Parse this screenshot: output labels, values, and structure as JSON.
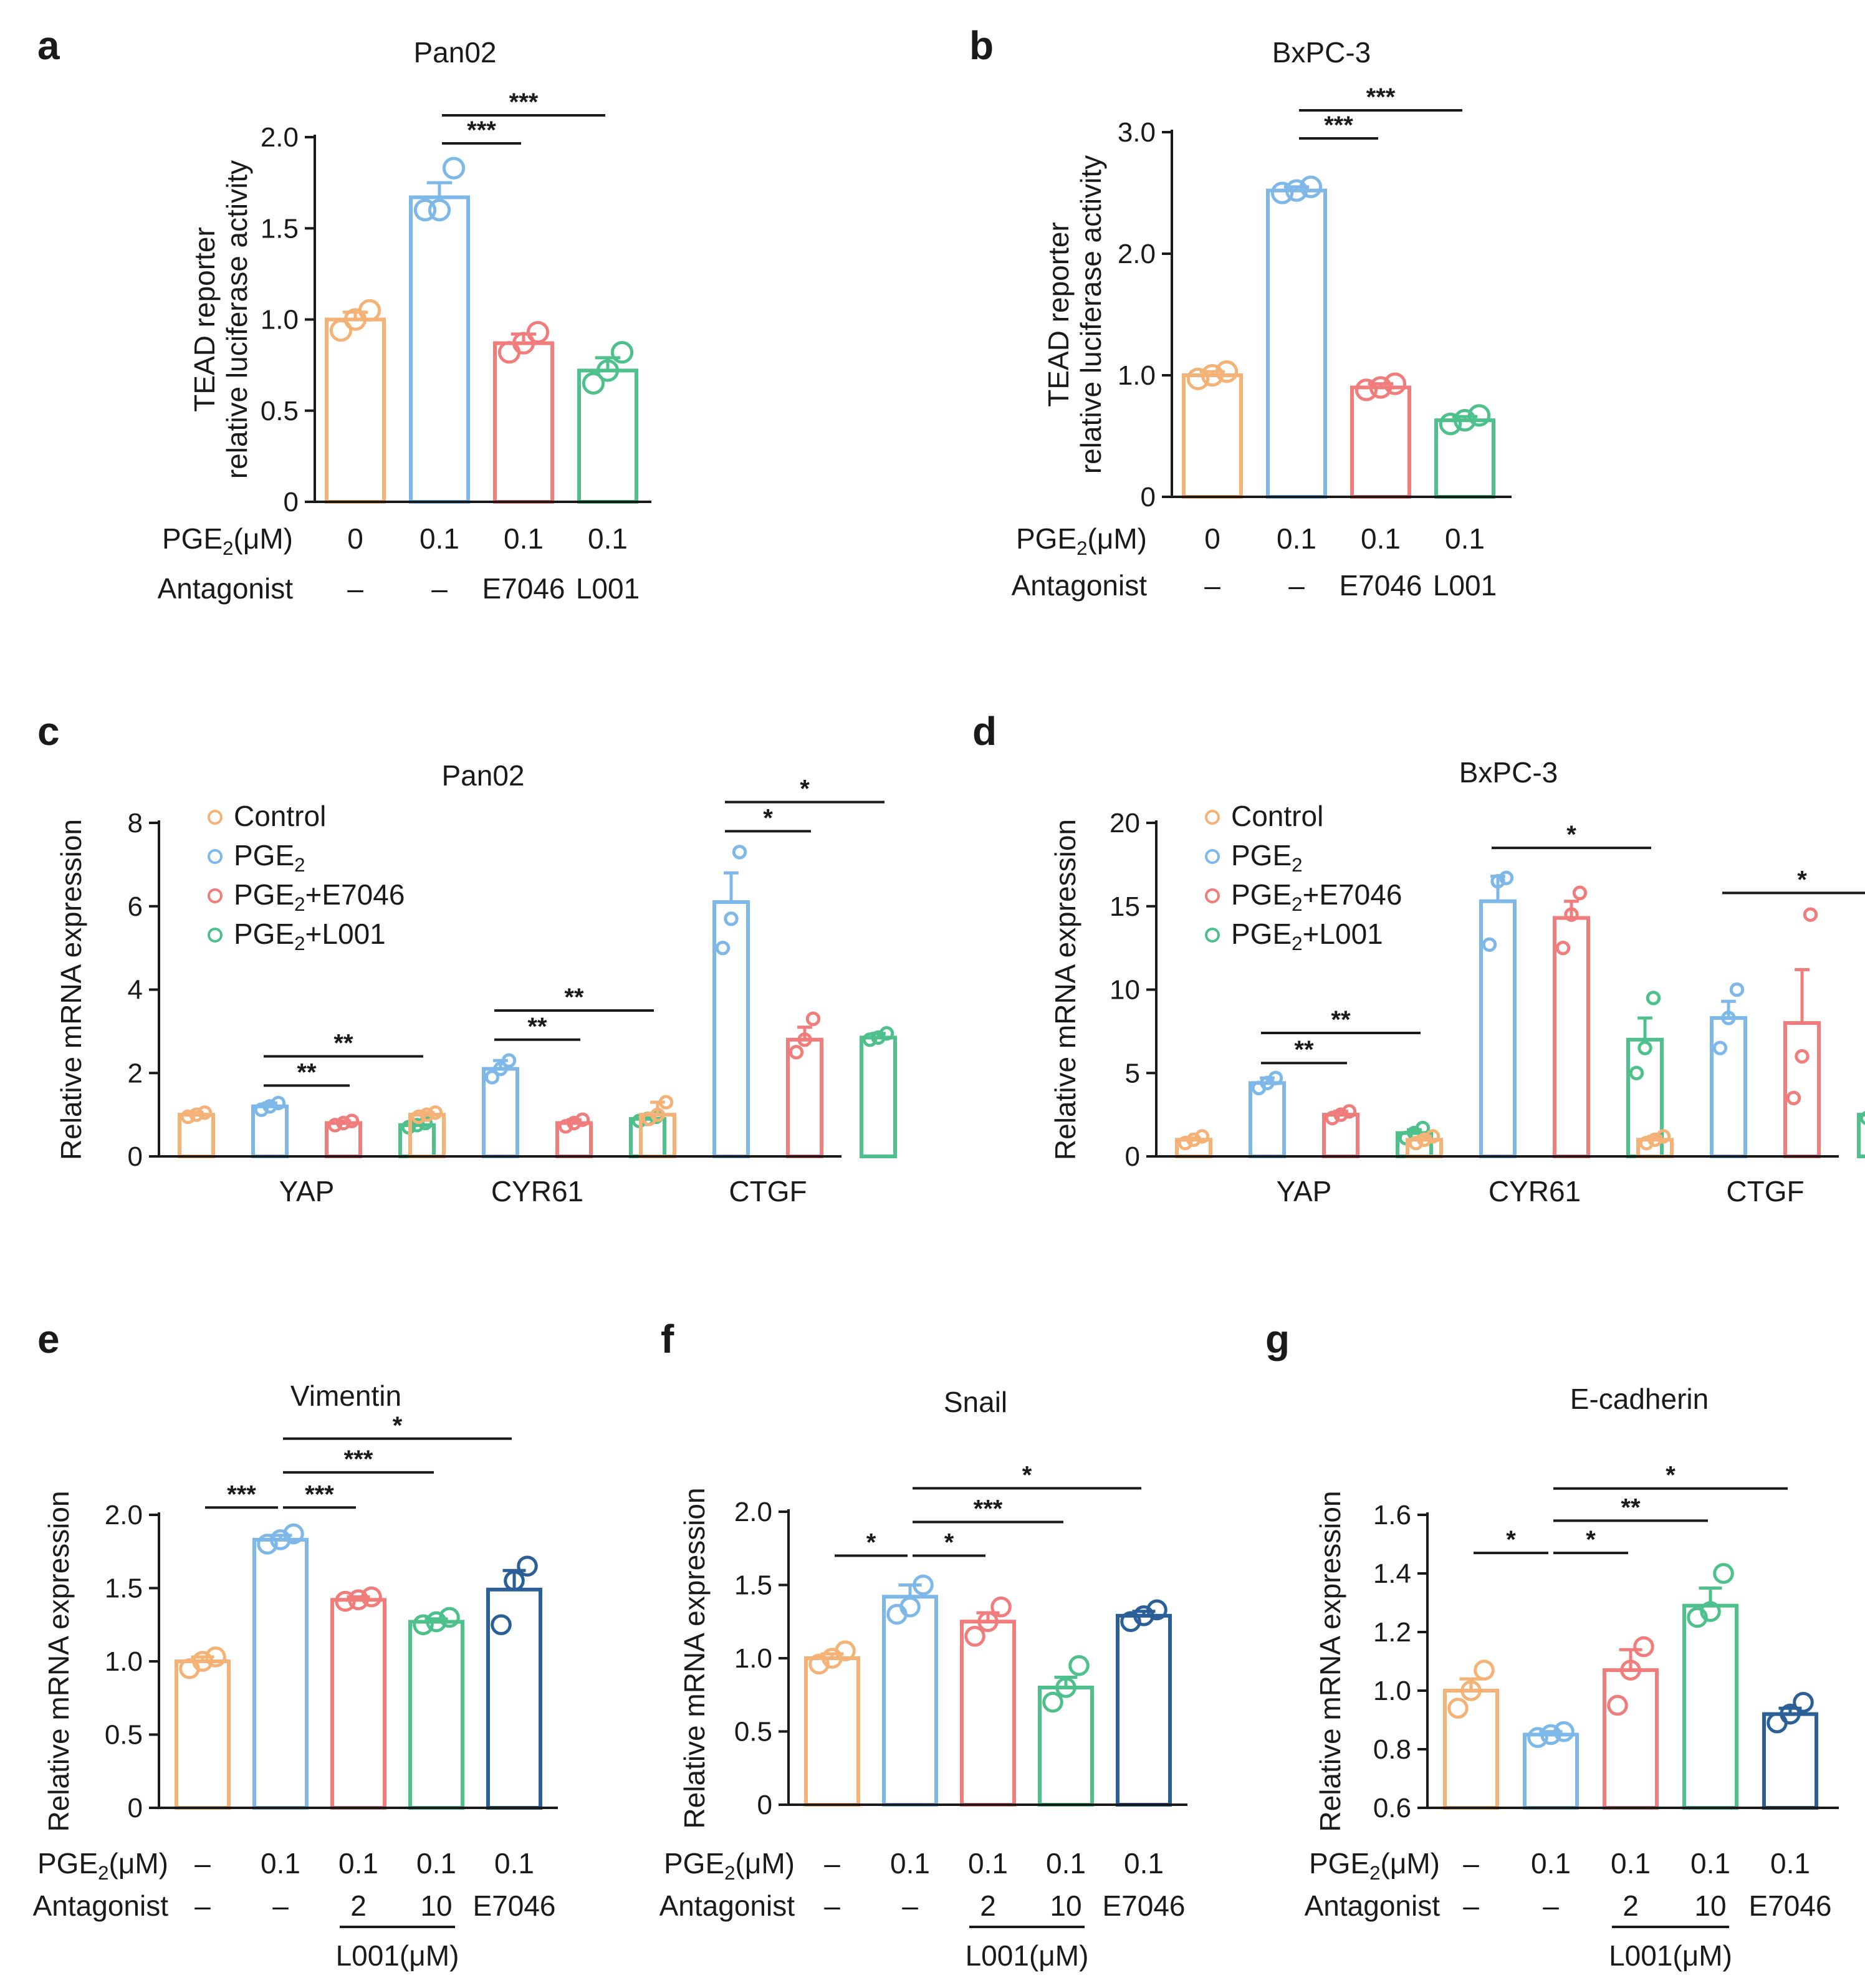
{
  "colors": {
    "orange": "#F5B276",
    "blue": "#7EB8E8",
    "red": "#F07C7C",
    "green": "#4DC08C",
    "navy": "#2A5F98"
  },
  "chart_data": [
    {
      "id": "a",
      "type": "bar",
      "panel_label": "a",
      "title": "Pan02",
      "ylabel": "TEAD reporter\nrelative luciferase activity",
      "ylim": [
        0,
        2.0
      ],
      "yticks": [
        0,
        0.5,
        1.0,
        1.5,
        2.0
      ],
      "ytick_labels": [
        "0",
        "0.5",
        "1.0",
        "1.5",
        "2.0"
      ],
      "values": [
        1.0,
        1.67,
        0.87,
        0.72
      ],
      "errors": [
        0.04,
        0.08,
        0.05,
        0.07
      ],
      "points": [
        [
          0.94,
          1.0,
          1.05
        ],
        [
          1.6,
          1.6,
          1.83
        ],
        [
          0.82,
          0.87,
          0.93
        ],
        [
          0.65,
          0.72,
          0.82
        ]
      ],
      "colors": [
        "orange",
        "blue",
        "red",
        "green"
      ],
      "row_labels": [
        {
          "label": "PGE2(μM)",
          "values": [
            "0",
            "0.1",
            "0.1",
            "0.1"
          ]
        },
        {
          "label": "Antagonist",
          "values": [
            "–",
            "–",
            "E7046",
            "L001"
          ]
        }
      ],
      "significance": [
        {
          "from": 1,
          "to": 2,
          "label": "***",
          "level": 0
        },
        {
          "from": 1,
          "to": 3,
          "label": "***",
          "level": 1
        }
      ]
    },
    {
      "id": "b",
      "type": "bar",
      "panel_label": "b",
      "title": "BxPC-3",
      "ylabel": "TEAD reporter\nrelative luciferase activity",
      "ylim": [
        0,
        3.0
      ],
      "yticks": [
        0,
        1.0,
        2.0,
        3.0
      ],
      "ytick_labels": [
        "0",
        "1.0",
        "2.0",
        "3.0"
      ],
      "values": [
        1.0,
        2.52,
        0.9,
        0.63
      ],
      "errors": [
        0.03,
        0.03,
        0.03,
        0.03
      ],
      "points": [
        [
          0.97,
          1.0,
          1.03
        ],
        [
          2.5,
          2.52,
          2.55
        ],
        [
          0.88,
          0.9,
          0.93
        ],
        [
          0.6,
          0.63,
          0.67
        ]
      ],
      "colors": [
        "orange",
        "blue",
        "red",
        "green"
      ],
      "row_labels": [
        {
          "label": "PGE2(μM)",
          "values": [
            "0",
            "0.1",
            "0.1",
            "0.1"
          ]
        },
        {
          "label": "Antagonist",
          "values": [
            "–",
            "–",
            "E7046",
            "L001"
          ]
        }
      ],
      "significance": [
        {
          "from": 1,
          "to": 2,
          "label": "***",
          "level": 0
        },
        {
          "from": 1,
          "to": 3,
          "label": "***",
          "level": 1
        }
      ]
    },
    {
      "id": "c",
      "type": "bar",
      "panel_label": "c",
      "title": "Pan02",
      "ylabel": "Relative mRNA expression",
      "ylim": [
        0,
        8
      ],
      "yticks": [
        0,
        2,
        4,
        6,
        8
      ],
      "ytick_labels": [
        "0",
        "2",
        "4",
        "6",
        "8"
      ],
      "categories": [
        "YAP",
        "CYR61",
        "CTGF"
      ],
      "legend": [
        "Control",
        "PGE2",
        "PGE2+E7046",
        "PGE2+L001"
      ],
      "colors": [
        "orange",
        "blue",
        "red",
        "green"
      ],
      "series_values": [
        [
          1.0,
          1.2,
          0.8,
          0.75
        ],
        [
          1.0,
          2.1,
          0.8,
          0.9
        ],
        [
          1.0,
          6.1,
          2.8,
          2.85
        ]
      ],
      "series_errors": [
        [
          0.05,
          0.08,
          0.05,
          0.05
        ],
        [
          0.05,
          0.2,
          0.08,
          0.06
        ],
        [
          0.3,
          0.7,
          0.3,
          0.1
        ]
      ],
      "series_points": [
        [
          [
            0.95,
            1.0,
            1.05
          ],
          [
            1.12,
            1.2,
            1.28
          ],
          [
            0.75,
            0.8,
            0.85
          ],
          [
            0.7,
            0.75,
            0.8
          ]
        ],
        [
          [
            0.95,
            1.0,
            1.05
          ],
          [
            1.9,
            2.1,
            2.3
          ],
          [
            0.72,
            0.8,
            0.88
          ],
          [
            0.85,
            0.9,
            0.95
          ]
        ],
        [
          [
            0.9,
            1.0,
            1.3
          ],
          [
            5.0,
            5.7,
            7.3
          ],
          [
            2.5,
            2.8,
            3.3
          ],
          [
            2.8,
            2.85,
            2.95
          ]
        ]
      ],
      "significance": [
        {
          "group": 0,
          "from": 1,
          "to": 2,
          "label": "**",
          "y": 1.7
        },
        {
          "group": 0,
          "from": 1,
          "to": 3,
          "label": "**",
          "y": 2.4
        },
        {
          "group": 1,
          "from": 1,
          "to": 2,
          "label": "**",
          "y": 2.8
        },
        {
          "group": 1,
          "from": 1,
          "to": 3,
          "label": "**",
          "y": 3.5
        },
        {
          "group": 2,
          "from": 1,
          "to": 2,
          "label": "*",
          "y": 7.8
        },
        {
          "group": 2,
          "from": 1,
          "to": 3,
          "label": "*",
          "y": 8.5
        }
      ]
    },
    {
      "id": "d",
      "type": "bar",
      "panel_label": "d",
      "title": "BxPC-3",
      "ylabel": "Relative mRNA expression",
      "ylim": [
        0,
        20
      ],
      "yticks": [
        0,
        5,
        10,
        15,
        20
      ],
      "ytick_labels": [
        "0",
        "5",
        "10",
        "15",
        "20"
      ],
      "categories": [
        "YAP",
        "CYR61",
        "CTGF"
      ],
      "legend": [
        "Control",
        "PGE2",
        "PGE2+E7046",
        "PGE2+L001"
      ],
      "colors": [
        "orange",
        "blue",
        "red",
        "green"
      ],
      "series_values": [
        [
          1.0,
          4.4,
          2.5,
          1.4
        ],
        [
          1.0,
          15.3,
          14.3,
          7.0
        ],
        [
          1.0,
          8.3,
          8.0,
          2.5
        ]
      ],
      "series_errors": [
        [
          0.1,
          0.3,
          0.2,
          0.2
        ],
        [
          0.2,
          1.5,
          1.0,
          1.3
        ],
        [
          0.2,
          1.0,
          3.2,
          0.2
        ]
      ],
      "series_points": [
        [
          [
            0.8,
            1.0,
            1.2
          ],
          [
            4.1,
            4.4,
            4.7
          ],
          [
            2.3,
            2.5,
            2.7
          ],
          [
            1.1,
            1.4,
            1.7
          ]
        ],
        [
          [
            0.8,
            1.0,
            1.2
          ],
          [
            12.7,
            16.5,
            16.7
          ],
          [
            12.5,
            14.5,
            15.8
          ],
          [
            5.0,
            6.5,
            9.5
          ]
        ],
        [
          [
            0.8,
            1.0,
            1.2
          ],
          [
            6.5,
            8.3,
            10.0
          ],
          [
            3.5,
            6.0,
            14.5
          ],
          [
            2.3,
            2.5,
            2.7
          ]
        ]
      ],
      "significance": [
        {
          "group": 0,
          "from": 1,
          "to": 2,
          "label": "**",
          "y": 5.6
        },
        {
          "group": 0,
          "from": 1,
          "to": 3,
          "label": "**",
          "y": 7.4
        },
        {
          "group": 1,
          "from": 1,
          "to": 3,
          "label": "*",
          "y": 18.5
        },
        {
          "group": 2,
          "from": 1,
          "to": 3,
          "label": "*",
          "y": 15.8
        }
      ]
    },
    {
      "id": "e",
      "type": "bar",
      "panel_label": "e",
      "title": "Vimentin",
      "ylabel": "Relative mRNA expression",
      "ylim": [
        0,
        2.0
      ],
      "yticks": [
        0,
        0.5,
        1.0,
        1.5,
        2.0
      ],
      "ytick_labels": [
        "0",
        "0.5",
        "1.0",
        "1.5",
        "2.0"
      ],
      "values": [
        1.0,
        1.83,
        1.42,
        1.27,
        1.49
      ],
      "errors": [
        0.03,
        0.03,
        0.02,
        0.02,
        0.13
      ],
      "points": [
        [
          0.95,
          1.0,
          1.03
        ],
        [
          1.8,
          1.83,
          1.87
        ],
        [
          1.41,
          1.42,
          1.44
        ],
        [
          1.25,
          1.27,
          1.3
        ],
        [
          1.25,
          1.55,
          1.65
        ]
      ],
      "colors": [
        "orange",
        "blue",
        "red",
        "green",
        "navy"
      ],
      "row_labels": [
        {
          "label": "PGE2(μM)",
          "values": [
            "–",
            "0.1",
            "0.1",
            "0.1",
            "0.1"
          ]
        },
        {
          "label": "Antagonist",
          "values": [
            "–",
            "–",
            "2",
            "10",
            "E7046"
          ]
        }
      ],
      "group_label": "L001(μM)",
      "significance": [
        {
          "from": 0,
          "to": 1,
          "label": "***",
          "y": 2.05
        },
        {
          "from": 1,
          "to": 2,
          "label": "***",
          "y": 2.05
        },
        {
          "from": 1,
          "to": 3,
          "label": "***",
          "y": 2.29
        },
        {
          "from": 1,
          "to": 4,
          "label": "*",
          "y": 2.52
        }
      ]
    },
    {
      "id": "f",
      "type": "bar",
      "panel_label": "f",
      "title": "Snail",
      "ylabel": "Relative mRNA expression",
      "ylim": [
        0,
        2.0
      ],
      "yticks": [
        0,
        0.5,
        1.0,
        1.5,
        2.0
      ],
      "ytick_labels": [
        "0",
        "0.5",
        "1.0",
        "1.5",
        "2.0"
      ],
      "values": [
        1.0,
        1.42,
        1.25,
        0.8,
        1.29
      ],
      "errors": [
        0.03,
        0.08,
        0.06,
        0.07,
        0.03
      ],
      "points": [
        [
          0.96,
          1.0,
          1.05
        ],
        [
          1.3,
          1.35,
          1.5
        ],
        [
          1.15,
          1.25,
          1.35
        ],
        [
          0.7,
          0.8,
          0.95
        ],
        [
          1.25,
          1.29,
          1.33
        ]
      ],
      "colors": [
        "orange",
        "blue",
        "red",
        "green",
        "navy"
      ],
      "row_labels": [
        {
          "label": "PGE2(μM)",
          "values": [
            "–",
            "0.1",
            "0.1",
            "0.1",
            "0.1"
          ]
        },
        {
          "label": "Antagonist",
          "values": [
            "–",
            "–",
            "2",
            "10",
            "E7046"
          ]
        }
      ],
      "group_label": "L001(μM)",
      "significance": [
        {
          "from": 0,
          "to": 1,
          "label": "*",
          "y": 1.7
        },
        {
          "from": 1,
          "to": 2,
          "label": "*",
          "y": 1.7
        },
        {
          "from": 1,
          "to": 3,
          "label": "***",
          "y": 1.93
        },
        {
          "from": 1,
          "to": 4,
          "label": "*",
          "y": 2.16
        }
      ]
    },
    {
      "id": "g",
      "type": "bar",
      "panel_label": "g",
      "title": "E-cadherin",
      "ylabel": "Relative mRNA expression",
      "ylim": [
        0.6,
        1.6
      ],
      "yticks": [
        0.6,
        0.8,
        1.0,
        1.2,
        1.4,
        1.6
      ],
      "ytick_labels": [
        "0.6",
        "0.8",
        "1.0",
        "1.2",
        "1.4",
        "1.6"
      ],
      "values": [
        1.0,
        0.85,
        1.07,
        1.29,
        0.92
      ],
      "errors": [
        0.04,
        0.01,
        0.07,
        0.06,
        0.02
      ],
      "points": [
        [
          0.94,
          1.0,
          1.07
        ],
        [
          0.84,
          0.85,
          0.86
        ],
        [
          0.95,
          1.07,
          1.15
        ],
        [
          1.25,
          1.27,
          1.4
        ],
        [
          0.89,
          0.92,
          0.96
        ]
      ],
      "colors": [
        "orange",
        "blue",
        "red",
        "green",
        "navy"
      ],
      "row_labels": [
        {
          "label": "PGE2(μM)",
          "values": [
            "–",
            "0.1",
            "0.1",
            "0.1",
            "0.1"
          ]
        },
        {
          "label": "Antagonist",
          "values": [
            "–",
            "–",
            "2",
            "10",
            "E7046"
          ]
        }
      ],
      "group_label": "L001(μM)",
      "significance": [
        {
          "from": 0,
          "to": 1,
          "label": "*",
          "y": 1.47
        },
        {
          "from": 1,
          "to": 2,
          "label": "*",
          "y": 1.47
        },
        {
          "from": 1,
          "to": 3,
          "label": "**",
          "y": 1.58
        },
        {
          "from": 1,
          "to": 4,
          "label": "*",
          "y": 1.69
        }
      ]
    }
  ]
}
